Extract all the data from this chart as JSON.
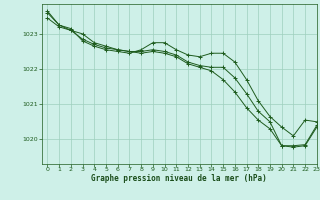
{
  "bg_color": "#cef0e8",
  "grid_color": "#9ecfbe",
  "line_color": "#1e5c1e",
  "xlabel": "Graphe pression niveau de la mer (hPa)",
  "xlabel_color": "#1a4d1a",
  "xlim": [
    -0.5,
    23
  ],
  "ylim": [
    1019.3,
    1023.85
  ],
  "yticks": [
    1020,
    1021,
    1022,
    1023
  ],
  "xticks": [
    0,
    1,
    2,
    3,
    4,
    5,
    6,
    7,
    8,
    9,
    10,
    11,
    12,
    13,
    14,
    15,
    16,
    17,
    18,
    19,
    20,
    21,
    22,
    23
  ],
  "series1": [
    1023.65,
    1023.25,
    1023.15,
    1022.8,
    1022.65,
    1022.55,
    1022.5,
    1022.45,
    1022.55,
    1022.75,
    1022.75,
    1022.55,
    1022.4,
    1022.35,
    1022.45,
    1022.45,
    1022.2,
    1021.7,
    1021.1,
    1020.65,
    1020.35,
    1020.1,
    1020.55,
    1020.5
  ],
  "series2": [
    1023.45,
    1023.2,
    1023.1,
    1023.0,
    1022.75,
    1022.65,
    1022.55,
    1022.5,
    1022.45,
    1022.5,
    1022.45,
    1022.35,
    1022.15,
    1022.05,
    1021.95,
    1021.7,
    1021.35,
    1020.9,
    1020.55,
    1020.3,
    1019.82,
    1019.78,
    1019.82,
    1020.35
  ],
  "series3": [
    1023.6,
    1023.25,
    1023.1,
    1022.85,
    1022.7,
    1022.6,
    1022.55,
    1022.5,
    1022.5,
    1022.55,
    1022.5,
    1022.4,
    1022.2,
    1022.1,
    1022.05,
    1022.05,
    1021.75,
    1021.3,
    1020.8,
    1020.5,
    1019.82,
    1019.82,
    1019.85,
    1020.4
  ]
}
